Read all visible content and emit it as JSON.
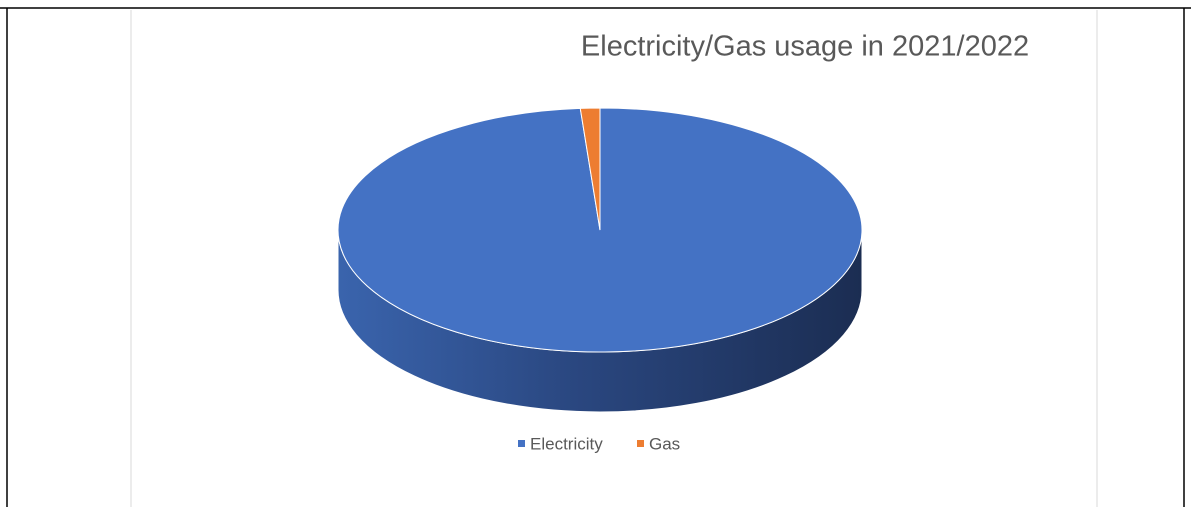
{
  "chart_data": {
    "type": "pie",
    "title": "Electricity/Gas usage in 2021/2022",
    "categories": [
      "Electricity",
      "Gas"
    ],
    "values": [
      98.8,
      1.2
    ],
    "colors": [
      "#4472c4",
      "#ed7d31"
    ],
    "legend": "bottom"
  }
}
